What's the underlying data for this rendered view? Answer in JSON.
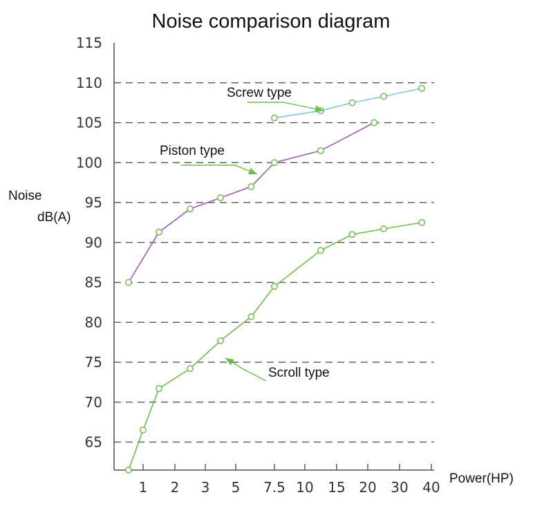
{
  "chart_data": {
    "type": "line",
    "title": "Noise comparison diagram",
    "ylabel_line1": "Noise",
    "ylabel_line2": "dB(A)",
    "xlabel": "Power(HP)",
    "x_ticks": [
      "1",
      "2",
      "3",
      "5",
      "7.5",
      "10",
      "15",
      "20",
      "30",
      "40"
    ],
    "y_ticks": [
      65,
      70,
      75,
      80,
      85,
      90,
      95,
      100,
      105,
      110,
      115
    ],
    "ylim": [
      61,
      115
    ],
    "gridlines_y": [
      65,
      70,
      75,
      80,
      85,
      90,
      95,
      100,
      105,
      110
    ],
    "grid": "horizontal dashed",
    "series": [
      {
        "name": "Screw type",
        "color": "#7ec8dc",
        "points": [
          {
            "x": "7.5",
            "y": 105.6
          },
          {
            "x": "12.5",
            "y": 106.5
          },
          {
            "x": "17.5",
            "y": 107.5
          },
          {
            "x": "25",
            "y": 108.3
          },
          {
            "x": "37",
            "y": 109.3
          }
        ]
      },
      {
        "name": "Piston type",
        "color": "#a259b5",
        "points": [
          {
            "x": "0.6",
            "y": 85.0
          },
          {
            "x": "1.5",
            "y": 91.3
          },
          {
            "x": "2.5",
            "y": 94.2
          },
          {
            "x": "4",
            "y": 95.6
          },
          {
            "x": "6",
            "y": 97.0
          },
          {
            "x": "7.5",
            "y": 100.0
          },
          {
            "x": "12.5",
            "y": 101.5
          },
          {
            "x": "22",
            "y": 105.0
          }
        ]
      },
      {
        "name": "Scroll type",
        "color": "#6cbf4a",
        "points": [
          {
            "x": "0.6",
            "y": 61.5
          },
          {
            "x": "1",
            "y": 66.5
          },
          {
            "x": "1.5",
            "y": 71.7
          },
          {
            "x": "2.5",
            "y": 74.2
          },
          {
            "x": "4",
            "y": 77.7
          },
          {
            "x": "6",
            "y": 80.7
          },
          {
            "x": "7.5",
            "y": 84.5
          },
          {
            "x": "12.5",
            "y": 89.0
          },
          {
            "x": "17.5",
            "y": 91.0
          },
          {
            "x": "25",
            "y": 91.7
          },
          {
            "x": "37",
            "y": 92.5
          }
        ]
      }
    ],
    "annotations": [
      {
        "text": "Screw type",
        "series": "Screw type"
      },
      {
        "text": "Piston type",
        "series": "Piston type"
      },
      {
        "text": "Scroll type",
        "series": "Scroll type"
      }
    ],
    "colors": {
      "axis": "#333333",
      "grid": "#444444",
      "arrow": "#6cbf4a"
    }
  }
}
